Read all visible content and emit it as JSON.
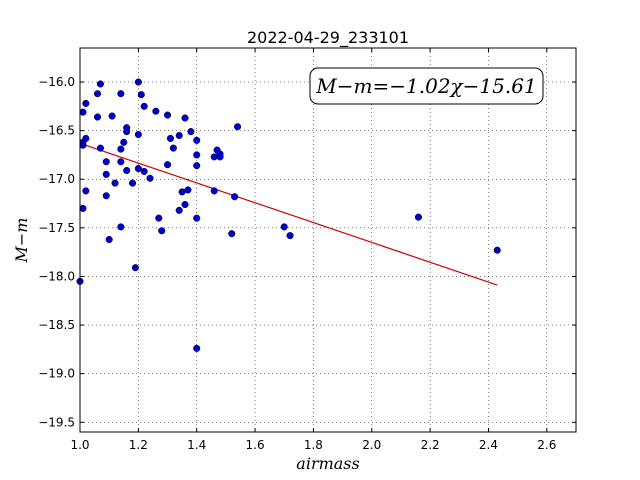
{
  "chart_data": {
    "type": "scatter",
    "title": "2022-04-29_233101",
    "xlabel": "airmass",
    "ylabel": "M−m",
    "xlim": [
      1.0,
      2.7
    ],
    "ylim": [
      -19.6,
      -15.65
    ],
    "x_ticks": [
      "1.0",
      "1.2",
      "1.4",
      "1.6",
      "1.8",
      "2.0",
      "2.2",
      "2.4",
      "2.6"
    ],
    "y_ticks": [
      "−16.0",
      "−16.5",
      "−17.0",
      "−17.5",
      "−18.0",
      "−18.5",
      "−19.0",
      "−19.5"
    ],
    "grid": true,
    "annotation": "M−m=−1.02χ−15.61",
    "annotation_position": "top-right",
    "point_color": "#0000cc",
    "fit_color": "#cc0000",
    "fit": {
      "slope": -1.02,
      "intercept": -15.61,
      "x_range": [
        1.0,
        2.43
      ]
    },
    "points": [
      {
        "x": 1.0,
        "y": -18.05
      },
      {
        "x": 1.01,
        "y": -16.31
      },
      {
        "x": 1.01,
        "y": -16.62
      },
      {
        "x": 1.01,
        "y": -16.65
      },
      {
        "x": 1.01,
        "y": -17.3
      },
      {
        "x": 1.02,
        "y": -16.22
      },
      {
        "x": 1.02,
        "y": -16.58
      },
      {
        "x": 1.02,
        "y": -17.12
      },
      {
        "x": 1.06,
        "y": -16.12
      },
      {
        "x": 1.06,
        "y": -16.36
      },
      {
        "x": 1.07,
        "y": -16.02
      },
      {
        "x": 1.07,
        "y": -16.68
      },
      {
        "x": 1.09,
        "y": -17.17
      },
      {
        "x": 1.09,
        "y": -16.82
      },
      {
        "x": 1.09,
        "y": -16.95
      },
      {
        "x": 1.1,
        "y": -17.62
      },
      {
        "x": 1.11,
        "y": -16.35
      },
      {
        "x": 1.12,
        "y": -17.04
      },
      {
        "x": 1.14,
        "y": -16.12
      },
      {
        "x": 1.14,
        "y": -16.69
      },
      {
        "x": 1.14,
        "y": -16.82
      },
      {
        "x": 1.14,
        "y": -17.49
      },
      {
        "x": 1.15,
        "y": -16.62
      },
      {
        "x": 1.16,
        "y": -16.47
      },
      {
        "x": 1.16,
        "y": -16.51
      },
      {
        "x": 1.16,
        "y": -16.91
      },
      {
        "x": 1.18,
        "y": -17.04
      },
      {
        "x": 1.19,
        "y": -17.91
      },
      {
        "x": 1.2,
        "y": -16.0
      },
      {
        "x": 1.2,
        "y": -16.54
      },
      {
        "x": 1.2,
        "y": -16.89
      },
      {
        "x": 1.21,
        "y": -16.13
      },
      {
        "x": 1.22,
        "y": -16.25
      },
      {
        "x": 1.22,
        "y": -16.92
      },
      {
        "x": 1.24,
        "y": -16.99
      },
      {
        "x": 1.26,
        "y": -16.3
      },
      {
        "x": 1.27,
        "y": -17.4
      },
      {
        "x": 1.28,
        "y": -17.53
      },
      {
        "x": 1.3,
        "y": -16.34
      },
      {
        "x": 1.3,
        "y": -16.85
      },
      {
        "x": 1.31,
        "y": -16.58
      },
      {
        "x": 1.32,
        "y": -16.68
      },
      {
        "x": 1.34,
        "y": -16.55
      },
      {
        "x": 1.34,
        "y": -17.32
      },
      {
        "x": 1.35,
        "y": -17.13
      },
      {
        "x": 1.36,
        "y": -16.37
      },
      {
        "x": 1.36,
        "y": -17.26
      },
      {
        "x": 1.37,
        "y": -17.11
      },
      {
        "x": 1.38,
        "y": -16.51
      },
      {
        "x": 1.4,
        "y": -16.6
      },
      {
        "x": 1.4,
        "y": -16.75
      },
      {
        "x": 1.4,
        "y": -16.86
      },
      {
        "x": 1.4,
        "y": -17.4
      },
      {
        "x": 1.4,
        "y": -18.74
      },
      {
        "x": 1.46,
        "y": -16.77
      },
      {
        "x": 1.46,
        "y": -17.12
      },
      {
        "x": 1.47,
        "y": -16.7
      },
      {
        "x": 1.48,
        "y": -16.74
      },
      {
        "x": 1.48,
        "y": -16.77
      },
      {
        "x": 1.52,
        "y": -17.56
      },
      {
        "x": 1.53,
        "y": -17.18
      },
      {
        "x": 1.54,
        "y": -16.46
      },
      {
        "x": 1.7,
        "y": -17.49
      },
      {
        "x": 1.72,
        "y": -17.58
      },
      {
        "x": 2.16,
        "y": -17.39
      },
      {
        "x": 2.43,
        "y": -17.73
      }
    ]
  }
}
